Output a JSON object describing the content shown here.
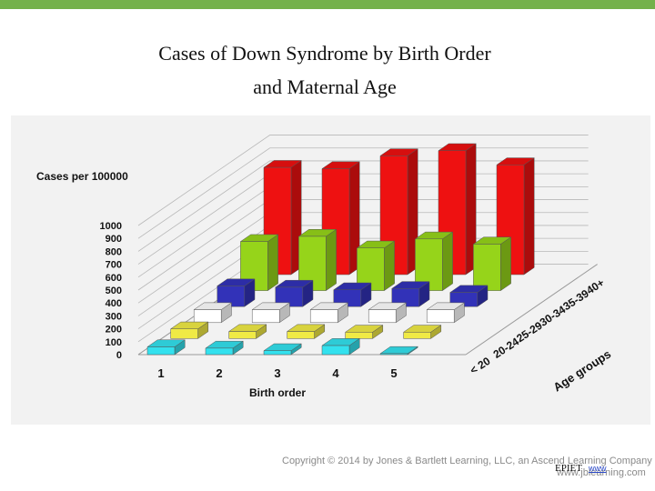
{
  "slide": {
    "title_line1": "Cases of Down Syndrome by Birth Order",
    "title_line2": "and Maternal Age"
  },
  "chart_data": {
    "type": "bar",
    "subtype": "3d-grouped",
    "z_axis_title": "Cases per 100000",
    "x_axis_title": "Birth order",
    "depth_axis_title": "Age groups",
    "y_ticks": [
      "0",
      "100",
      "200",
      "300",
      "400",
      "500",
      "600",
      "700",
      "800",
      "900",
      "1000"
    ],
    "ylim": [
      0,
      1000
    ],
    "categories": [
      "1",
      "2",
      "3",
      "4",
      "5"
    ],
    "series": [
      {
        "name": "< 20",
        "color": "#33e1ee",
        "values": [
          60,
          50,
          30,
          70,
          5
        ]
      },
      {
        "name": "20-24",
        "color": "#f0ea45",
        "values": [
          75,
          55,
          55,
          50,
          50
        ]
      },
      {
        "name": "25-29",
        "color": "#ffffff",
        "values": [
          100,
          100,
          100,
          100,
          100
        ]
      },
      {
        "name": "30-34",
        "color": "#3232b8",
        "values": [
          160,
          150,
          130,
          140,
          110
        ]
      },
      {
        "name": "35-39",
        "color": "#96d41a",
        "values": [
          380,
          420,
          330,
          400,
          360
        ]
      },
      {
        "name": "40+",
        "color": "#ee1111",
        "values": [
          830,
          820,
          920,
          960,
          850
        ]
      }
    ]
  },
  "footer": {
    "copyright": "Copyright © 2014 by Jones & Bartlett Learning, LLC, an Ascend Learning Company",
    "website": "www.jblearning.com",
    "label": "EPIET",
    "link": "www"
  }
}
